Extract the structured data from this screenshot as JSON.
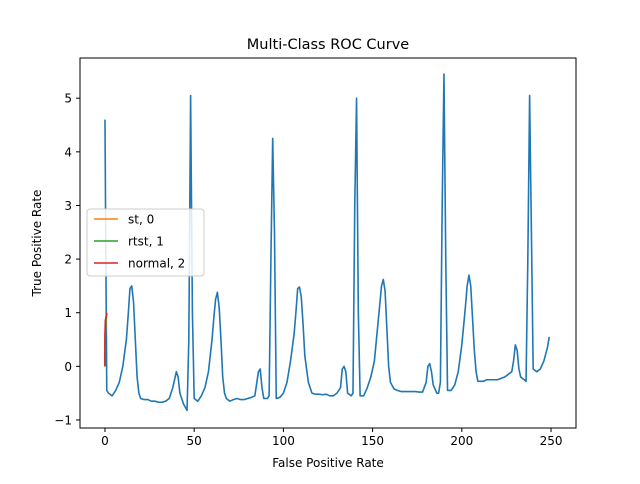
{
  "chart_data": {
    "type": "line",
    "title": "Multi-Class ROC Curve",
    "xlabel": "False Positive Rate",
    "ylabel": "True Positive Rate",
    "xlim": [
      -14,
      264
    ],
    "ylim": [
      -1.15,
      5.75
    ],
    "xticks": [
      0,
      50,
      100,
      150,
      200,
      250
    ],
    "yticks": [
      -1,
      0,
      1,
      2,
      3,
      4,
      5
    ],
    "grid": false,
    "legend": {
      "position": "center-left",
      "entries": [
        {
          "label": "st, 0",
          "color": "#ff7f0e"
        },
        {
          "label": "rtst, 1",
          "color": "#2ca02c"
        },
        {
          "label": "normal, 2",
          "color": "#d62728"
        }
      ]
    },
    "series": [
      {
        "color": "#1f77b4",
        "points": [
          [
            0,
            4.6
          ],
          [
            0.5,
            2.0
          ],
          [
            1,
            -0.45
          ],
          [
            2,
            -0.5
          ],
          [
            4,
            -0.55
          ],
          [
            6,
            -0.45
          ],
          [
            8,
            -0.3
          ],
          [
            10,
            0.0
          ],
          [
            12,
            0.5
          ],
          [
            13,
            0.95
          ],
          [
            14,
            1.45
          ],
          [
            15,
            1.5
          ],
          [
            16,
            1.2
          ],
          [
            17,
            0.5
          ],
          [
            18,
            -0.2
          ],
          [
            19,
            -0.5
          ],
          [
            20,
            -0.6
          ],
          [
            22,
            -0.62
          ],
          [
            24,
            -0.62
          ],
          [
            26,
            -0.65
          ],
          [
            28,
            -0.65
          ],
          [
            30,
            -0.67
          ],
          [
            32,
            -0.67
          ],
          [
            34,
            -0.65
          ],
          [
            36,
            -0.6
          ],
          [
            38,
            -0.4
          ],
          [
            40,
            -0.1
          ],
          [
            41,
            -0.2
          ],
          [
            42,
            -0.5
          ],
          [
            44,
            -0.7
          ],
          [
            46,
            -0.82
          ],
          [
            47,
            0.5
          ],
          [
            48,
            5.05
          ],
          [
            49,
            1.0
          ],
          [
            50,
            -0.6
          ],
          [
            52,
            -0.65
          ],
          [
            54,
            -0.55
          ],
          [
            56,
            -0.4
          ],
          [
            58,
            -0.1
          ],
          [
            60,
            0.5
          ],
          [
            61,
            0.9
          ],
          [
            62,
            1.25
          ],
          [
            63,
            1.38
          ],
          [
            64,
            1.1
          ],
          [
            65,
            0.5
          ],
          [
            66,
            -0.2
          ],
          [
            67,
            -0.5
          ],
          [
            68,
            -0.6
          ],
          [
            70,
            -0.65
          ],
          [
            72,
            -0.62
          ],
          [
            74,
            -0.6
          ],
          [
            76,
            -0.62
          ],
          [
            78,
            -0.62
          ],
          [
            80,
            -0.6
          ],
          [
            82,
            -0.58
          ],
          [
            84,
            -0.55
          ],
          [
            86,
            -0.1
          ],
          [
            87,
            -0.05
          ],
          [
            88,
            -0.4
          ],
          [
            89,
            -0.6
          ],
          [
            91,
            -0.6
          ],
          [
            92,
            -0.55
          ],
          [
            93,
            2.0
          ],
          [
            94,
            4.25
          ],
          [
            95,
            2.5
          ],
          [
            96,
            -0.6
          ],
          [
            98,
            -0.58
          ],
          [
            100,
            -0.5
          ],
          [
            102,
            -0.3
          ],
          [
            104,
            0.1
          ],
          [
            106,
            0.6
          ],
          [
            107,
            1.0
          ],
          [
            108,
            1.45
          ],
          [
            109,
            1.48
          ],
          [
            110,
            1.3
          ],
          [
            111,
            0.8
          ],
          [
            112,
            0.2
          ],
          [
            114,
            -0.3
          ],
          [
            116,
            -0.5
          ],
          [
            118,
            -0.52
          ],
          [
            120,
            -0.52
          ],
          [
            122,
            -0.53
          ],
          [
            124,
            -0.52
          ],
          [
            126,
            -0.55
          ],
          [
            128,
            -0.55
          ],
          [
            130,
            -0.5
          ],
          [
            132,
            -0.4
          ],
          [
            133,
            -0.05
          ],
          [
            134,
            0.0
          ],
          [
            135,
            -0.1
          ],
          [
            136,
            -0.5
          ],
          [
            138,
            -0.55
          ],
          [
            139,
            -0.5
          ],
          [
            140,
            3.0
          ],
          [
            141,
            5.0
          ],
          [
            142,
            1.0
          ],
          [
            143,
            -0.55
          ],
          [
            145,
            -0.55
          ],
          [
            147,
            -0.4
          ],
          [
            149,
            -0.2
          ],
          [
            151,
            0.1
          ],
          [
            153,
            0.8
          ],
          [
            155,
            1.5
          ],
          [
            156,
            1.62
          ],
          [
            157,
            1.4
          ],
          [
            158,
            0.7
          ],
          [
            159,
            0.0
          ],
          [
            160,
            -0.3
          ],
          [
            162,
            -0.42
          ],
          [
            164,
            -0.45
          ],
          [
            166,
            -0.47
          ],
          [
            170,
            -0.47
          ],
          [
            174,
            -0.47
          ],
          [
            176,
            -0.48
          ],
          [
            178,
            -0.48
          ],
          [
            180,
            -0.3
          ],
          [
            181,
            0.0
          ],
          [
            182,
            0.05
          ],
          [
            183,
            -0.1
          ],
          [
            184,
            -0.35
          ],
          [
            186,
            -0.5
          ],
          [
            187,
            -0.5
          ],
          [
            188,
            -0.3
          ],
          [
            189,
            3.0
          ],
          [
            190,
            5.45
          ],
          [
            191,
            2.0
          ],
          [
            192,
            -0.45
          ],
          [
            194,
            -0.45
          ],
          [
            196,
            -0.35
          ],
          [
            198,
            -0.1
          ],
          [
            200,
            0.4
          ],
          [
            202,
            1.1
          ],
          [
            203,
            1.5
          ],
          [
            204,
            1.7
          ],
          [
            205,
            1.5
          ],
          [
            206,
            0.9
          ],
          [
            207,
            0.3
          ],
          [
            208,
            -0.1
          ],
          [
            209,
            -0.28
          ],
          [
            212,
            -0.28
          ],
          [
            214,
            -0.25
          ],
          [
            216,
            -0.25
          ],
          [
            220,
            -0.25
          ],
          [
            224,
            -0.2
          ],
          [
            226,
            -0.15
          ],
          [
            228,
            -0.1
          ],
          [
            229,
            0.1
          ],
          [
            230,
            0.4
          ],
          [
            231,
            0.3
          ],
          [
            232,
            -0.05
          ],
          [
            233,
            -0.2
          ],
          [
            235,
            -0.25
          ],
          [
            236,
            -0.28
          ],
          [
            237,
            2.0
          ],
          [
            238,
            5.05
          ],
          [
            239,
            2.5
          ],
          [
            240,
            -0.05
          ],
          [
            242,
            -0.1
          ],
          [
            244,
            -0.05
          ],
          [
            246,
            0.1
          ],
          [
            248,
            0.35
          ],
          [
            249,
            0.55
          ]
        ]
      },
      {
        "name": "st, 0",
        "color": "#ff7f0e",
        "points": [
          [
            0,
            0.0
          ],
          [
            0,
            0.4
          ],
          [
            0.2,
            0.6
          ],
          [
            0.5,
            0.8
          ],
          [
            1,
            1.0
          ]
        ]
      },
      {
        "name": "rtst, 1",
        "color": "#2ca02c",
        "points": [
          [
            0,
            0.0
          ],
          [
            0,
            0.5
          ],
          [
            0.3,
            0.8
          ],
          [
            1,
            1.0
          ]
        ]
      },
      {
        "name": "normal, 2",
        "color": "#d62728",
        "points": [
          [
            0,
            0.0
          ],
          [
            0,
            0.6
          ],
          [
            0.2,
            0.85
          ],
          [
            1,
            1.0
          ]
        ]
      }
    ]
  }
}
